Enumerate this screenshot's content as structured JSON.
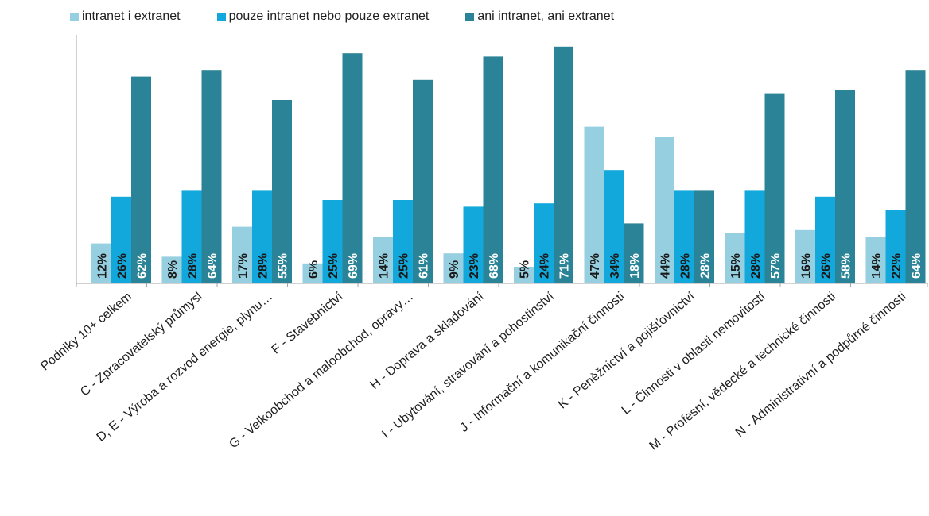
{
  "chart_data": {
    "type": "bar",
    "legend_position": "top",
    "grid": false,
    "ylim": [
      0,
      75
    ],
    "categories": [
      "Podniky 10+ celkem",
      "C - Zpracovatelský průmysl",
      "D, E - Výroba a rozvod energie, plynu…",
      "F - Stavebnictví",
      "G - Velkoobchod a maloobchod, opravy…",
      "H - Doprava a skladování",
      "I - Ubytování, stravování a pohostinství",
      "J - Informační a komunikační činnosti",
      "K - Peněžnictví a pojišťovnictví",
      "L - Činnosti v oblasti nemovitostí",
      "M - Profesní, vědecké a technické činnosti",
      "N - Administrativní a podpůrné činnosti"
    ],
    "series": [
      {
        "name": "intranet i extranet",
        "color": "#96cfe0",
        "values": [
          12,
          8,
          17,
          6,
          14,
          9,
          5,
          47,
          44,
          15,
          16,
          14
        ],
        "labels": [
          "12%",
          "8%",
          "17%",
          "6%",
          "14%",
          "9%",
          "5%",
          "47%",
          "44%",
          "15%",
          "16%",
          "14%"
        ]
      },
      {
        "name": "pouze intranet nebo pouze extranet",
        "color": "#12a8dc",
        "values": [
          26,
          28,
          28,
          25,
          25,
          23,
          24,
          34,
          28,
          28,
          26,
          22
        ],
        "labels": [
          "26%",
          "28%",
          "28%",
          "25%",
          "25%",
          "23%",
          "24%",
          "34%",
          "28%",
          "28%",
          "26%",
          "22%"
        ]
      },
      {
        "name": "ani intranet, ani extranet",
        "color": "#2a8396",
        "values": [
          62,
          64,
          55,
          69,
          61,
          68,
          71,
          18,
          28,
          57,
          58,
          64
        ],
        "labels": [
          "62%",
          "64%",
          "55%",
          "69%",
          "61%",
          "68%",
          "71%",
          "18%",
          "28%",
          "57%",
          "58%",
          "64%"
        ]
      }
    ]
  }
}
